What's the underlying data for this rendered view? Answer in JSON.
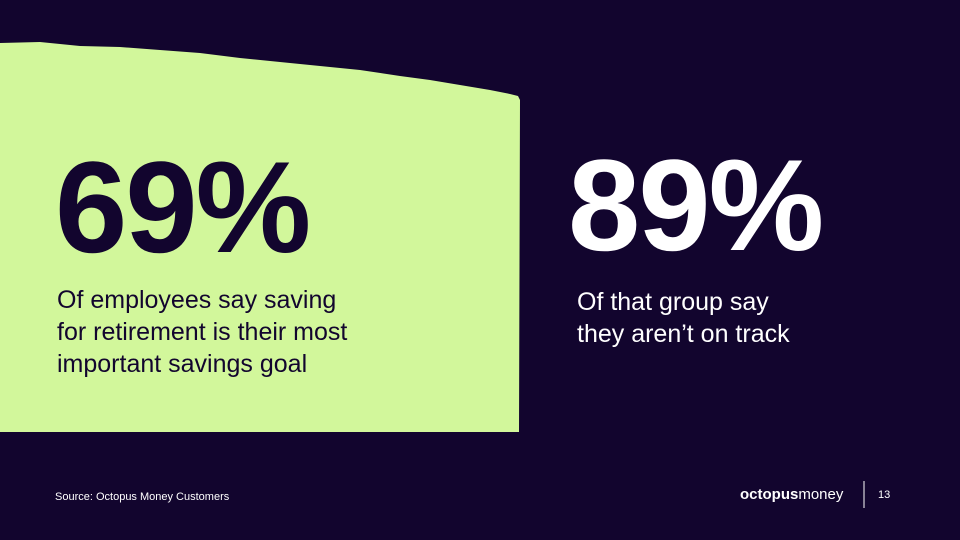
{
  "stats": [
    {
      "value": "69%",
      "lines": [
        "Of employees say saving",
        "for retirement is their most",
        "important savings goal"
      ]
    },
    {
      "value": "89%",
      "lines": [
        "Of that group say",
        "they aren’t on track"
      ]
    }
  ],
  "footer": {
    "source": "Source: Octopus Money Customers",
    "logo_bold": "octopus",
    "logo_light": "money",
    "page": "13"
  }
}
